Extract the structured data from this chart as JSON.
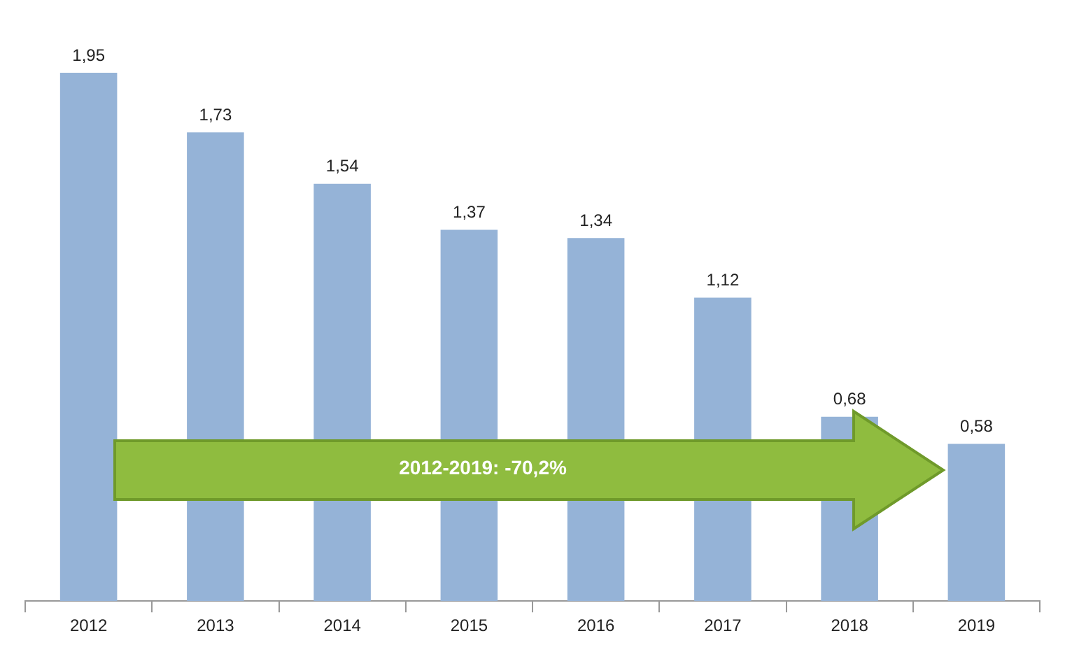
{
  "chart_data": {
    "type": "bar",
    "categories": [
      "2012",
      "2013",
      "2014",
      "2015",
      "2016",
      "2017",
      "2018",
      "2019"
    ],
    "values": [
      1.95,
      1.73,
      1.54,
      1.37,
      1.34,
      1.12,
      0.68,
      0.58
    ],
    "value_labels": [
      "1,95",
      "1,73",
      "1,54",
      "1,37",
      "1,34",
      "1,12",
      "0,68",
      "0,58"
    ],
    "color": "#95b3d7",
    "grid": false,
    "legend": false,
    "annotations": [
      "2012-2019: -70,2%"
    ]
  }
}
